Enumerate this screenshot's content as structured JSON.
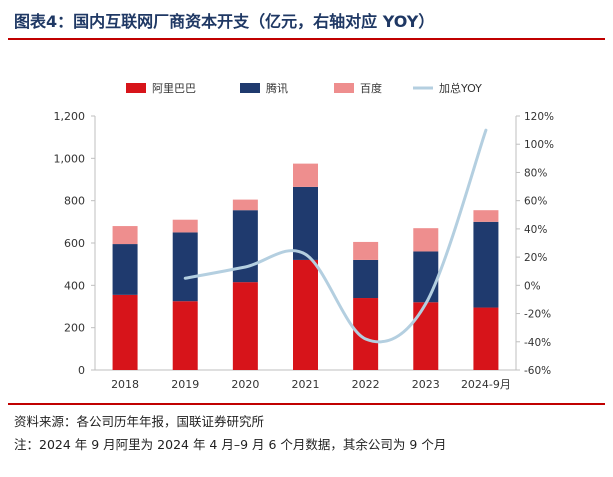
{
  "header": {
    "title": "图表4：国内互联网厂商资本开支（亿元，右轴对应 YOY）"
  },
  "chart_data": {
    "type": "bar",
    "stacked": true,
    "categories": [
      "2018",
      "2019",
      "2020",
      "2021",
      "2022",
      "2023",
      "2024-9月"
    ],
    "series": [
      {
        "name": "阿里巴巴",
        "type": "bar",
        "axis": "left",
        "color": "#d7141a",
        "values": [
          355,
          325,
          415,
          520,
          340,
          320,
          295
        ]
      },
      {
        "name": "腾讯",
        "type": "bar",
        "axis": "left",
        "color": "#1f3a6e",
        "values": [
          240,
          325,
          340,
          345,
          180,
          240,
          405
        ]
      },
      {
        "name": "百度",
        "type": "bar",
        "axis": "left",
        "color": "#ee8e8e",
        "values": [
          85,
          60,
          50,
          110,
          85,
          110,
          55
        ]
      },
      {
        "name": "加总YOY",
        "type": "line",
        "axis": "right",
        "color": "#b4cfe0",
        "values": [
          null,
          5,
          13,
          22,
          -38,
          -13,
          110
        ]
      }
    ],
    "y_left": {
      "min": 0,
      "max": 1200,
      "ticks": [
        "0",
        "200",
        "400",
        "600",
        "800",
        "1,000",
        "1,200"
      ]
    },
    "y_right": {
      "min": -60,
      "max": 120,
      "ticks": [
        "-60%",
        "-40%",
        "-20%",
        "0%",
        "20%",
        "40%",
        "60%",
        "80%",
        "100%",
        "120%"
      ]
    },
    "grid": false,
    "legend": "top"
  },
  "footer": {
    "source": "资料来源：各公司历年年报，国联证券研究所",
    "note": "注：2024 年 9 月阿里为 2024 年 4 月–9 月 6 个月数据，其余公司为 9 个月"
  }
}
